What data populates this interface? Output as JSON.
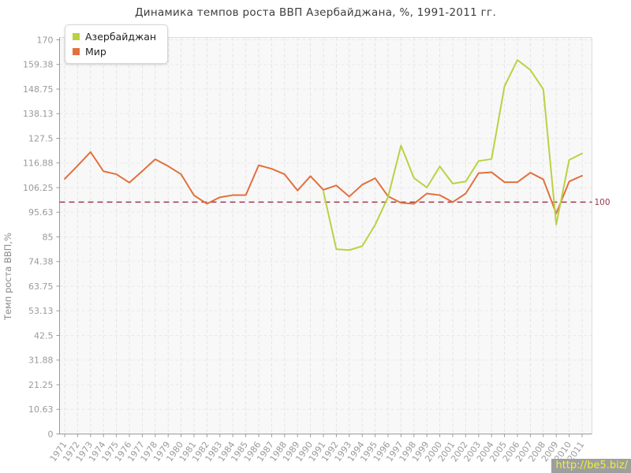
{
  "watermark": {
    "text": "http://be5.biz/",
    "color": "#ecf134",
    "background": "#9e9e9e"
  },
  "chart_data": {
    "type": "line",
    "title": "Динамика темпов роста ВВП Азербайджана, %, 1991-2011 гг.",
    "xlabel": "",
    "ylabel": "Темп роста ВВП,%",
    "ylim": [
      0,
      170
    ],
    "yticks": [
      "170",
      "159.38",
      "148.75",
      "138.13",
      "127.5",
      "116.88",
      "106.25",
      "95.63",
      "85",
      "74.38",
      "63.75",
      "53.13",
      "42.5",
      "31.88",
      "21.25",
      "10.63",
      "0"
    ],
    "x": [
      1971,
      1972,
      1973,
      1974,
      1975,
      1976,
      1977,
      1978,
      1979,
      1980,
      1981,
      1982,
      1983,
      1984,
      1985,
      1986,
      1987,
      1988,
      1989,
      1990,
      1991,
      1992,
      1993,
      1994,
      1995,
      1996,
      1997,
      1998,
      1999,
      2000,
      2001,
      2002,
      2003,
      2004,
      2005,
      2006,
      2007,
      2008,
      2009,
      2010,
      2011
    ],
    "grid": true,
    "legend_position": "top-left",
    "plot_background": "#f8f8f8",
    "series": [
      {
        "id": "azerbaijan",
        "name": "Азербайджан",
        "color": "#b9d243",
        "values": [
          null,
          null,
          null,
          null,
          null,
          null,
          null,
          null,
          null,
          null,
          null,
          null,
          null,
          null,
          null,
          null,
          null,
          null,
          null,
          null,
          104.6,
          79.7,
          79.3,
          81.0,
          90.2,
          102.2,
          124.4,
          110.4,
          106.3,
          115.4,
          108.0,
          108.9,
          117.7,
          118.6,
          149.9,
          161.3,
          157.0,
          148.7,
          90.3,
          118.2,
          121.0
        ]
      },
      {
        "id": "world",
        "name": "Мир",
        "color": "#e2703c",
        "values": [
          110.0,
          115.7,
          121.6,
          113.3,
          112.0,
          108.4,
          113.4,
          118.5,
          115.5,
          112.0,
          102.9,
          99.3,
          102.1,
          103.0,
          103.0,
          115.9,
          114.4,
          112.0,
          105.0,
          111.2,
          105.3,
          107.2,
          102.4,
          107.5,
          110.3,
          102.5,
          99.7,
          99.3,
          103.7,
          103.0,
          100.0,
          103.7,
          112.5,
          112.9,
          108.6,
          108.6,
          112.7,
          109.8,
          95.1,
          108.9,
          111.4
        ]
      }
    ],
    "reference_line": {
      "value": 100,
      "label": "100",
      "color": "#9a3a4e",
      "style": "dashed"
    }
  }
}
